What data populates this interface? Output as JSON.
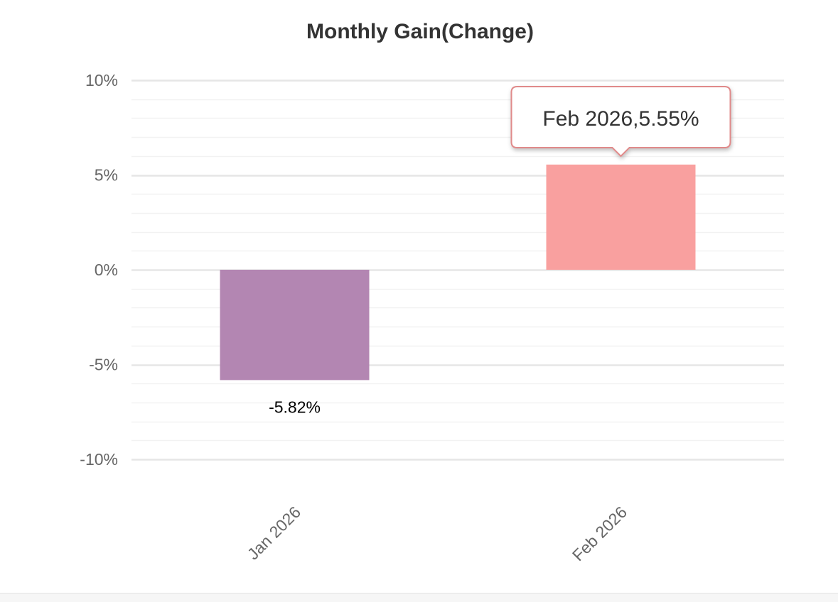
{
  "chart_data": {
    "type": "bar",
    "title": "Monthly Gain(Change)",
    "categories": [
      "Jan 2026",
      "Feb 2026"
    ],
    "values": [
      -5.82,
      5.55
    ],
    "colors": [
      "#b386b2",
      "#f9a09f"
    ],
    "ylim": [
      -10,
      10
    ],
    "yticks": [
      10,
      5,
      0,
      -5,
      -10
    ],
    "ytick_labels": [
      "10%",
      "5%",
      "0%",
      "-5%",
      "-10%"
    ],
    "data_labels": [
      "-5.82%",
      ""
    ],
    "grid": true,
    "gridline_color": "#e6e6e6",
    "minor_gridline_color": "#f2f2f2",
    "tooltip": {
      "text": "Feb 2026,5.55%",
      "category_index": 1,
      "border_color": "#e08a8a"
    }
  }
}
